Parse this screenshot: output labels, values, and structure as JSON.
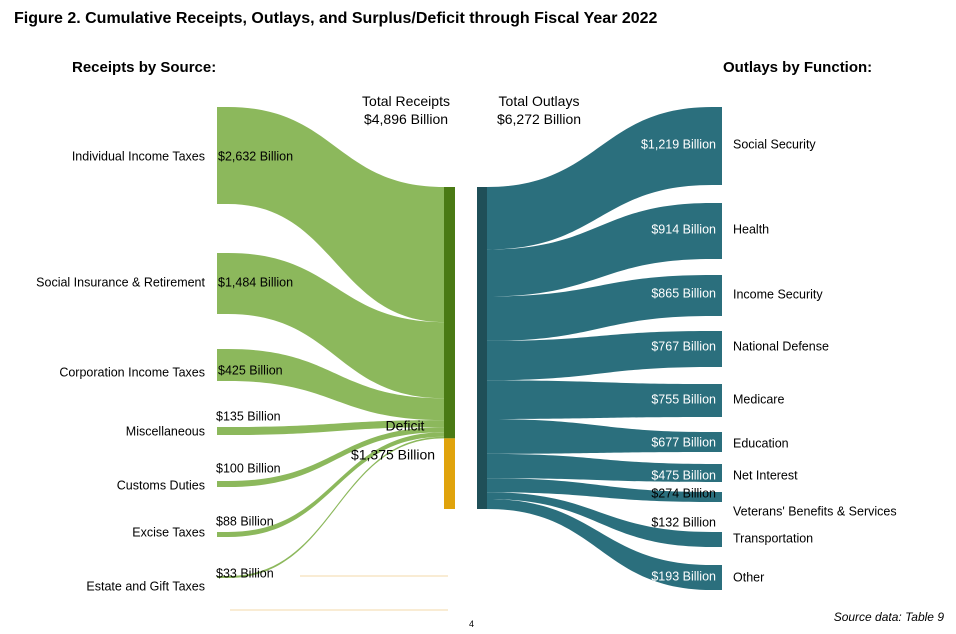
{
  "title": "Figure 2. Cumulative Receipts, Outlays, and Surplus/Deficit through Fiscal Year 2022",
  "receipts_heading": "Receipts by Source:",
  "outlays_heading": "Outlays by Function:",
  "total_receipts": {
    "label": "Total Receipts",
    "value": "$4,896 Billion"
  },
  "total_outlays": {
    "label": "Total Outlays",
    "value": "$6,272 Billion"
  },
  "deficit": {
    "label": "Deficit",
    "value": "$1,375 Billion"
  },
  "source_note": "Source data: Table 9",
  "page_number": "4",
  "colors": {
    "receipts": "#8cb85c",
    "receipts_bar": "#4a7a14",
    "deficit": "#e0a30c",
    "outlays": "#2b6f7d",
    "outlays_bar": "#1f4f58"
  },
  "chart_data": {
    "type": "sankey",
    "units": "Billion",
    "receipts": [
      {
        "name": "Individual Income Taxes",
        "value": 2632,
        "label": "$2,632 Billion"
      },
      {
        "name": "Social Insurance & Retirement",
        "value": 1484,
        "label": "$1,484 Billion"
      },
      {
        "name": "Corporation Income Taxes",
        "value": 425,
        "label": "$425 Billion"
      },
      {
        "name": "Miscellaneous",
        "value": 135,
        "label": "$135 Billion"
      },
      {
        "name": "Customs Duties",
        "value": 100,
        "label": "$100 Billion"
      },
      {
        "name": "Excise Taxes",
        "value": 88,
        "label": "$88 Billion"
      },
      {
        "name": "Estate and Gift Taxes",
        "value": 33,
        "label": "$33 Billion"
      }
    ],
    "total_receipts": 4896,
    "deficit": 1375,
    "total_outlays": 6272,
    "outlays": [
      {
        "name": "Social Security",
        "value": 1219,
        "label": "$1,219 Billion"
      },
      {
        "name": "Health",
        "value": 914,
        "label": "$914 Billion"
      },
      {
        "name": "Income Security",
        "value": 865,
        "label": "$865 Billion"
      },
      {
        "name": "National Defense",
        "value": 767,
        "label": "$767 Billion"
      },
      {
        "name": "Medicare",
        "value": 755,
        "label": "$755 Billion"
      },
      {
        "name": "Education",
        "value": 677,
        "label": "$677 Billion"
      },
      {
        "name": "Net Interest",
        "value": 475,
        "label": "$475 Billion"
      },
      {
        "name": "Veterans' Benefits & Services",
        "value": 274,
        "label": "$274 Billion"
      },
      {
        "name": "Transportation",
        "value": 132,
        "label": "$132 Billion"
      },
      {
        "name": "Other",
        "value": 193,
        "label": "$193 Billion"
      }
    ]
  }
}
